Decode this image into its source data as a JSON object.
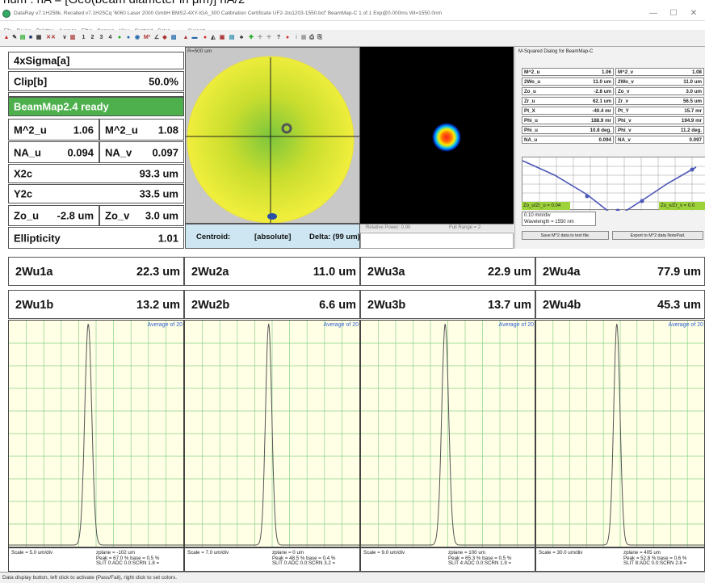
{
  "caption": "num : nA = [Geo(beam diameter in μm)] nA/2",
  "window": {
    "title": "DataRay v7.1H258k, Recalled v7.1H25Cq '6060 Laser 2000 GmbH BMS2-4XY-IGA_300 Calibration Certificate UF2-1to1203-1550.bcf'  BeamMap-C 1 of 1   Exp@0.000ms   Wl=1550.0nm",
    "controls": [
      "—",
      "☐",
      "✕"
    ]
  },
  "menu": [
    "File",
    "Device",
    "Palettes",
    "Average",
    "Filter",
    "Camera",
    "View",
    "Centroid",
    "Setup",
    "......",
    "Support"
  ],
  "toolbar": [
    "1",
    "2",
    "3",
    "4"
  ],
  "params": {
    "sigma": "4xSigma[a]",
    "clip_label": "Clip[b]",
    "clip_value": "50.0%",
    "ready": "BeamMap2.4 ready",
    "m2u_label": "M^2_u",
    "m2u_value": "1.06",
    "m2v_label": "M^2_u",
    "m2v_value": "1.08",
    "nau_label": "NA_u",
    "nau_value": "0.094",
    "nav_label": "NA_v",
    "nav_value": "0.097",
    "x2c_label": "X2c",
    "x2c_value": "93.3 um",
    "y2c_label": "Y2c",
    "y2c_value": "33.5 um",
    "zou_label": "Zo_u",
    "zou_value": "-2.8 um",
    "zov_label": "Zo_v",
    "zov_value": "3.0 um",
    "ell_label": "Ellipticity",
    "ell_value": "1.01"
  },
  "image1": {
    "label": "R=500 um"
  },
  "image2": {
    "relpower": "Relative Power: 0.00",
    "fullrange": "Full Range = 2"
  },
  "centroid": {
    "label": "Centroid:",
    "mode": "[absolute]",
    "delta": "Delta: (99 um)"
  },
  "msq": {
    "title": "M-Squared Dialog for BeamMap-C",
    "rows": [
      {
        "k1": "M^2_u",
        "v1": "1.06",
        "k2": "M^2_v",
        "v2": "1.08"
      },
      {
        "k1": "2Wo_u",
        "v1": "11.0 um",
        "k2": "2Wo_v",
        "v2": "11.0 um"
      },
      {
        "k1": "Zo_u",
        "v1": "-2.8 um",
        "k2": "Zo_v",
        "v2": "3.0 um"
      },
      {
        "k1": "Zr_u",
        "v1": "62.1 um",
        "k2": "Zr_v",
        "v2": "56.5 um"
      },
      {
        "k1": "Pt_X",
        "v1": "-40.4 mr",
        "k2": "Pt_Y",
        "v2": "15.7 mr"
      },
      {
        "k1": "Phi_u",
        "v1": "188.9 mr",
        "k2": "Phi_v",
        "v2": "194.9 mr"
      },
      {
        "k1": "Phi_u",
        "v1": "10.8 deg.",
        "k2": "Phi_v",
        "v2": "11.2 deg."
      },
      {
        "k1": "NA_u",
        "v1": "0.094",
        "k2": "NA_v",
        "v2": "0.097"
      }
    ],
    "zo_u": "Zo_u/Zr_u = 0.04",
    "zo_v": "Zo_v/Zr_v = 0.0",
    "per_div": "0.10 mm/div",
    "wavelength": "Wavelength = 1550 nm",
    "save_btn": "Save M^2 data to text file.",
    "export_btn": "Export to M^2 data NotePad."
  },
  "widths_a": [
    {
      "label": "2Wu1a",
      "value": "22.3 um"
    },
    {
      "label": "2Wu2a",
      "value": "11.0 um"
    },
    {
      "label": "2Wu3a",
      "value": "22.9 um"
    },
    {
      "label": "2Wu4a",
      "value": "77.9 um"
    }
  ],
  "widths_b": [
    {
      "label": "2Wu1b",
      "value": "13.2 um"
    },
    {
      "label": "2Wu2b",
      "value": "6.6 um"
    },
    {
      "label": "2Wu3b",
      "value": "13.7 um"
    },
    {
      "label": "2Wu4b",
      "value": "45.3 um"
    }
  ],
  "profiles": [
    {
      "avg": "Average of 20",
      "scale": "Scale = 5.0 um/div",
      "zplane": "zplane = -102 um",
      "peak": "Peak = 67.0 %  base = 0.5 %",
      "slit": "SLIT 0:ADC 0.0:SCRN 1.8 =",
      "center": 0.455,
      "sigma": 0.02
    },
    {
      "avg": "Average of 20",
      "scale": "Scale = 7.0 um/div",
      "zplane": "zplane = 0 um",
      "peak": "Peak = 48.5 %  base = 0.4 %",
      "slit": "SLIT 0:ADC 0.0:SCRN 3.2 =",
      "center": 0.48,
      "sigma": 0.018
    },
    {
      "avg": "Average of 20",
      "scale": "Scale = 9.0 um/div",
      "zplane": "zplane = 100 um",
      "peak": "Peak = 65.3 %  base = 0.5 %",
      "slit": "SLIT 4:ADC 0.0:SCRN 1.9 =",
      "center": 0.485,
      "sigma": 0.02
    },
    {
      "avg": "Average of 20",
      "scale": "Scale = 30.0 um/div",
      "zplane": "zplane = 405 um",
      "peak": "Peak = 52.8 %  base = 0.6 %",
      "slit": "SLIT 8:ADC 0.0:SCRN 2.8 =",
      "center": 0.48,
      "sigma": 0.019
    }
  ],
  "status": "Data display button, left click to activate (Pass/Fail), right click to set colors.",
  "colors": {
    "ready": "#4db04d",
    "centroid_bg": "#cde6f2",
    "profile_bg": "#ffffe6",
    "grid": "#8bd28b"
  }
}
